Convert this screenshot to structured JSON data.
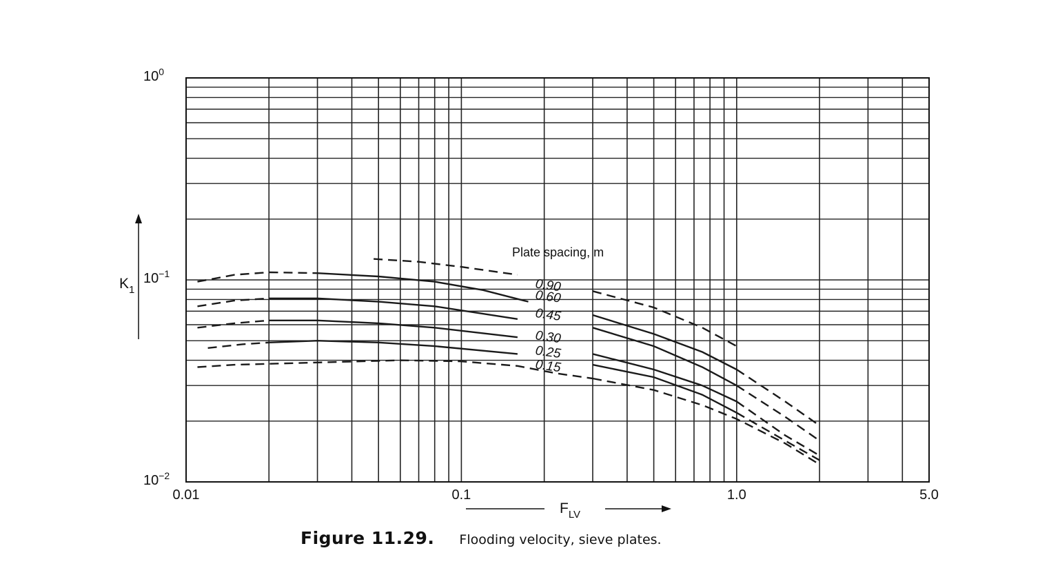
{
  "chart_data": {
    "type": "line",
    "xscale": "log",
    "yscale": "log",
    "xlim": [
      0.01,
      5.0
    ],
    "ylim": [
      0.01,
      1.0
    ],
    "grid": true,
    "x_ticks": [
      {
        "value": 0.01,
        "label": "0.01"
      },
      {
        "value": 0.1,
        "label": "0.1"
      },
      {
        "value": 1.0,
        "label": "1.0"
      },
      {
        "value": 5.0,
        "label": "5.0"
      }
    ],
    "y_ticks": [
      {
        "value": 1.0,
        "base": "10",
        "exp": "0"
      },
      {
        "value": 0.1,
        "base": "10",
        "exp": "−1"
      },
      {
        "value": 0.01,
        "base": "10",
        "exp": "−2"
      }
    ],
    "xlabel": {
      "main": "F",
      "sub": "LV"
    },
    "ylabel": {
      "main": "K",
      "sub": "1"
    },
    "legend_title": "Plate spacing, m",
    "line_color": "#1a1a1a",
    "grid_color": "#222222",
    "series": [
      {
        "name": "0.90",
        "left_dashed": [
          [
            0.011,
            0.098
          ],
          [
            0.015,
            0.106
          ],
          [
            0.02,
            0.109
          ],
          [
            0.03,
            0.108
          ]
        ],
        "left_solid": [
          [
            0.03,
            0.108
          ],
          [
            0.05,
            0.104
          ],
          [
            0.08,
            0.098
          ],
          [
            0.12,
            0.089
          ],
          [
            0.175,
            0.078
          ]
        ],
        "upper_dashed": [
          [
            0.048,
            0.127
          ],
          [
            0.07,
            0.123
          ],
          [
            0.1,
            0.116
          ],
          [
            0.16,
            0.106
          ]
        ],
        "right_dashed": [
          [
            0.3,
            0.088
          ],
          [
            0.5,
            0.073
          ],
          [
            0.75,
            0.058
          ],
          [
            1.0,
            0.047
          ]
        ]
      },
      {
        "name": "0.60",
        "left_dashed": [
          [
            0.011,
            0.074
          ],
          [
            0.015,
            0.079
          ],
          [
            0.02,
            0.081
          ]
        ],
        "left_solid": [
          [
            0.02,
            0.081
          ],
          [
            0.03,
            0.081
          ],
          [
            0.05,
            0.078
          ],
          [
            0.08,
            0.074
          ],
          [
            0.16,
            0.064
          ]
        ],
        "right_solid": [
          [
            0.3,
            0.067
          ],
          [
            0.5,
            0.054
          ],
          [
            0.75,
            0.044
          ],
          [
            1.0,
            0.036
          ]
        ],
        "right_dashed": [
          [
            1.0,
            0.036
          ],
          [
            1.5,
            0.025
          ],
          [
            2.0,
            0.019
          ]
        ]
      },
      {
        "name": "0.45",
        "left_dashed": [
          [
            0.011,
            0.058
          ],
          [
            0.015,
            0.061
          ],
          [
            0.02,
            0.063
          ]
        ],
        "left_solid": [
          [
            0.02,
            0.063
          ],
          [
            0.03,
            0.063
          ],
          [
            0.05,
            0.061
          ],
          [
            0.08,
            0.058
          ],
          [
            0.16,
            0.052
          ]
        ],
        "right_solid": [
          [
            0.3,
            0.058
          ],
          [
            0.5,
            0.047
          ],
          [
            0.75,
            0.037
          ],
          [
            1.0,
            0.03
          ]
        ],
        "right_dashed": [
          [
            1.0,
            0.03
          ],
          [
            1.5,
            0.021
          ],
          [
            2.0,
            0.016
          ]
        ]
      },
      {
        "name": "0.30",
        "left_dashed": [
          [
            0.012,
            0.046
          ],
          [
            0.016,
            0.048
          ],
          [
            0.02,
            0.049
          ]
        ],
        "left_solid": [
          [
            0.02,
            0.049
          ],
          [
            0.03,
            0.05
          ],
          [
            0.05,
            0.049
          ],
          [
            0.08,
            0.047
          ],
          [
            0.16,
            0.043
          ]
        ],
        "right_solid": [
          [
            0.3,
            0.043
          ],
          [
            0.5,
            0.036
          ],
          [
            0.75,
            0.03
          ],
          [
            1.0,
            0.025
          ]
        ],
        "right_dashed": [
          [
            1.0,
            0.025
          ],
          [
            1.5,
            0.017
          ],
          [
            2.0,
            0.0135
          ]
        ]
      },
      {
        "name": "0.25",
        "right_solid": [
          [
            0.3,
            0.038
          ],
          [
            0.5,
            0.033
          ],
          [
            0.75,
            0.027
          ],
          [
            1.0,
            0.022
          ]
        ],
        "right_dashed": [
          [
            1.0,
            0.022
          ],
          [
            1.5,
            0.016
          ],
          [
            2.0,
            0.0128
          ]
        ]
      },
      {
        "name": "0.15",
        "left_dashed": [
          [
            0.011,
            0.037
          ],
          [
            0.015,
            0.038
          ],
          [
            0.03,
            0.039
          ],
          [
            0.06,
            0.04
          ],
          [
            0.1,
            0.0395
          ],
          [
            0.16,
            0.0375
          ],
          [
            0.22,
            0.0345
          ],
          [
            0.3,
            0.0325
          ]
        ],
        "right_dashed": [
          [
            0.3,
            0.0325
          ],
          [
            0.5,
            0.0285
          ],
          [
            0.75,
            0.024
          ],
          [
            1.0,
            0.0205
          ],
          [
            1.5,
            0.0155
          ],
          [
            2.0,
            0.0122
          ]
        ]
      }
    ]
  },
  "caption": {
    "label": "Figure 11.29.",
    "text": "Flooding velocity, sieve plates."
  }
}
